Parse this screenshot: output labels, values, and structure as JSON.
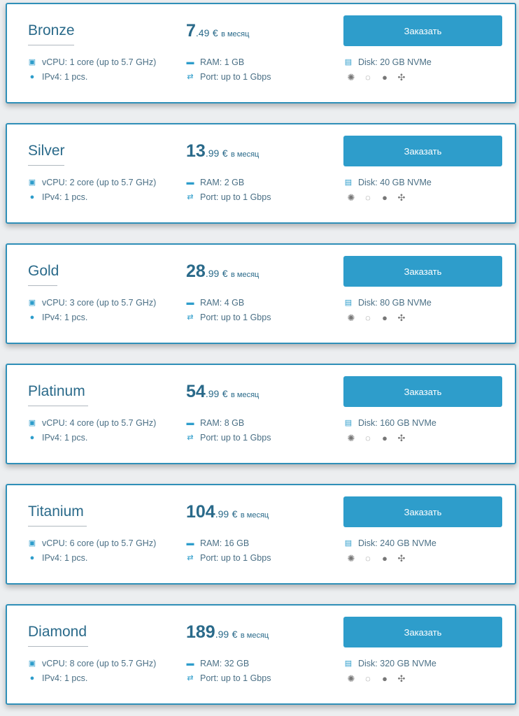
{
  "order_label": "Заказать",
  "currency": "€",
  "period": "в месяц",
  "colors": {
    "accent": "#2e9dcb",
    "text": "#2a6a8a",
    "border": "#2f8fb8"
  },
  "os_icons": [
    "centos-icon",
    "debian-icon",
    "freebsd-icon",
    "ubuntu-icon"
  ],
  "plans": [
    {
      "name": "Bronze",
      "price_int": "7",
      "price_dec": ".49",
      "vcpu": "vCPU: 1 core (up to 5.7 GHz)",
      "ipv4": "IPv4: 1 pcs.",
      "ram": "RAM: 1 GB",
      "port": "Port: up to 1 Gbps",
      "disk": "Disk: 20 GB NVMe"
    },
    {
      "name": "Silver",
      "price_int": "13",
      "price_dec": ".99",
      "vcpu": "vCPU: 2 core (up to 5.7 GHz)",
      "ipv4": "IPv4: 1 pcs.",
      "ram": "RAM: 2 GB",
      "port": "Port: up to 1 Gbps",
      "disk": "Disk: 40 GB NVMe"
    },
    {
      "name": "Gold",
      "price_int": "28",
      "price_dec": ".99",
      "vcpu": "vCPU: 3 core (up to 5.7 GHz)",
      "ipv4": "IPv4: 1 pcs.",
      "ram": "RAM: 4 GB",
      "port": "Port: up to 1 Gbps",
      "disk": "Disk: 80 GB NVMe"
    },
    {
      "name": "Platinum",
      "price_int": "54",
      "price_dec": ".99",
      "vcpu": "vCPU: 4 core (up to 5.7 GHz)",
      "ipv4": "IPv4: 1 pcs.",
      "ram": "RAM: 8 GB",
      "port": "Port: up to 1 Gbps",
      "disk": "Disk: 160 GB NVMe"
    },
    {
      "name": "Titanium",
      "price_int": "104",
      "price_dec": ".99",
      "vcpu": "vCPU: 6 core (up to 5.7 GHz)",
      "ipv4": "IPv4: 1 pcs.",
      "ram": "RAM: 16 GB",
      "port": "Port: up to 1 Gbps",
      "disk": "Disk: 240 GB NVMe"
    },
    {
      "name": "Diamond",
      "price_int": "189",
      "price_dec": ".99",
      "vcpu": "vCPU: 8 core (up to 5.7 GHz)",
      "ipv4": "IPv4: 1 pcs.",
      "ram": "RAM: 32 GB",
      "port": "Port: up to 1 Gbps",
      "disk": "Disk: 320 GB NVMe"
    }
  ]
}
